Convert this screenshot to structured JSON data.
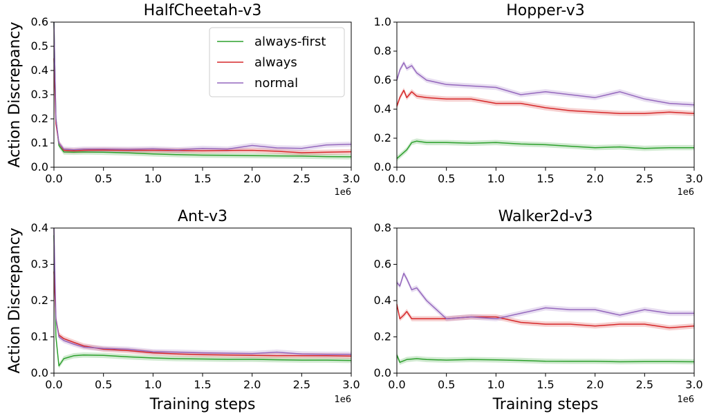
{
  "figure": {
    "ylabel": "Action Discrepancy",
    "xlabel": "Training steps",
    "colors": {
      "always-first": "#2ca02c",
      "always": "#d62728",
      "normal": "#9467bd"
    }
  },
  "chart_data": [
    {
      "type": "line",
      "title": "HalfCheetah-v3",
      "xlim": [
        0,
        3.0
      ],
      "ylim": [
        0,
        0.6
      ],
      "xticks": [
        "0.0",
        "0.5",
        "1.0",
        "1.5",
        "2.0",
        "2.5",
        "3.0"
      ],
      "yticks": [
        "0.0",
        "0.1",
        "0.2",
        "0.3",
        "0.4",
        "0.5",
        "0.6"
      ],
      "x_offset_label": "1e6",
      "ylabel": "Action Discrepancy",
      "xlabel": "",
      "legend": {
        "placement": "top-right",
        "entries": [
          "always-first",
          "always",
          "normal"
        ]
      },
      "series": [
        {
          "name": "always-first",
          "x": [
            0.0,
            0.02,
            0.05,
            0.1,
            0.2,
            0.3,
            0.5,
            0.75,
            1.0,
            1.25,
            1.5,
            1.75,
            2.0,
            2.25,
            2.5,
            2.75,
            3.0
          ],
          "y": [
            0.6,
            0.2,
            0.09,
            0.063,
            0.062,
            0.063,
            0.062,
            0.059,
            0.055,
            0.052,
            0.05,
            0.049,
            0.048,
            0.047,
            0.046,
            0.044,
            0.043
          ]
        },
        {
          "name": "always",
          "x": [
            0.0,
            0.02,
            0.05,
            0.1,
            0.2,
            0.3,
            0.5,
            0.75,
            1.0,
            1.25,
            1.5,
            1.75,
            2.0,
            2.25,
            2.5,
            2.75,
            3.0
          ],
          "y": [
            0.45,
            0.18,
            0.1,
            0.07,
            0.068,
            0.07,
            0.071,
            0.07,
            0.07,
            0.069,
            0.068,
            0.069,
            0.07,
            0.066,
            0.06,
            0.062,
            0.064
          ]
        },
        {
          "name": "normal",
          "x": [
            0.0,
            0.02,
            0.05,
            0.1,
            0.2,
            0.3,
            0.5,
            0.75,
            1.0,
            1.25,
            1.5,
            1.75,
            2.0,
            2.25,
            2.5,
            2.75,
            3.0
          ],
          "y": [
            0.6,
            0.2,
            0.1,
            0.075,
            0.072,
            0.075,
            0.075,
            0.074,
            0.076,
            0.072,
            0.078,
            0.075,
            0.09,
            0.08,
            0.078,
            0.092,
            0.095
          ]
        }
      ]
    },
    {
      "type": "line",
      "title": "Hopper-v3",
      "xlim": [
        0,
        3.0
      ],
      "ylim": [
        0,
        1.0
      ],
      "xticks": [
        "0.0",
        "0.5",
        "1.0",
        "1.5",
        "2.0",
        "2.5",
        "3.0"
      ],
      "yticks": [
        "0.0",
        "0.2",
        "0.4",
        "0.6",
        "0.8",
        "1.0"
      ],
      "x_offset_label": "1e6",
      "ylabel": "",
      "xlabel": "",
      "series": [
        {
          "name": "always-first",
          "x": [
            0.0,
            0.05,
            0.1,
            0.15,
            0.2,
            0.3,
            0.5,
            0.75,
            1.0,
            1.25,
            1.5,
            1.75,
            2.0,
            2.25,
            2.5,
            2.75,
            3.0
          ],
          "y": [
            0.06,
            0.09,
            0.12,
            0.17,
            0.18,
            0.17,
            0.17,
            0.165,
            0.17,
            0.16,
            0.155,
            0.145,
            0.135,
            0.14,
            0.13,
            0.135,
            0.135
          ]
        },
        {
          "name": "always",
          "x": [
            0.0,
            0.03,
            0.07,
            0.1,
            0.15,
            0.2,
            0.3,
            0.5,
            0.75,
            1.0,
            1.25,
            1.5,
            1.75,
            2.0,
            2.25,
            2.5,
            2.75,
            3.0
          ],
          "y": [
            0.42,
            0.48,
            0.53,
            0.48,
            0.52,
            0.49,
            0.48,
            0.47,
            0.47,
            0.44,
            0.44,
            0.41,
            0.39,
            0.38,
            0.37,
            0.37,
            0.38,
            0.37
          ]
        },
        {
          "name": "normal",
          "x": [
            0.0,
            0.03,
            0.07,
            0.1,
            0.15,
            0.2,
            0.3,
            0.5,
            0.75,
            1.0,
            1.25,
            1.5,
            1.75,
            2.0,
            2.25,
            2.5,
            2.75,
            3.0
          ],
          "y": [
            0.6,
            0.67,
            0.72,
            0.68,
            0.7,
            0.65,
            0.6,
            0.57,
            0.56,
            0.55,
            0.5,
            0.52,
            0.5,
            0.48,
            0.52,
            0.47,
            0.44,
            0.43
          ]
        }
      ]
    },
    {
      "type": "line",
      "title": "Ant-v3",
      "xlim": [
        0,
        3.0
      ],
      "ylim": [
        0,
        0.4
      ],
      "xticks": [
        "0.0",
        "0.5",
        "1.0",
        "1.5",
        "2.0",
        "2.5",
        "3.0"
      ],
      "yticks": [
        "0.0",
        "0.1",
        "0.2",
        "0.3",
        "0.4"
      ],
      "x_offset_label": "1e6",
      "ylabel": "Action Discrepancy",
      "xlabel": "Training steps",
      "series": [
        {
          "name": "always-first",
          "x": [
            0.0,
            0.02,
            0.05,
            0.1,
            0.2,
            0.3,
            0.5,
            0.75,
            1.0,
            1.25,
            1.5,
            1.75,
            2.0,
            2.25,
            2.5,
            2.75,
            3.0
          ],
          "y": [
            0.38,
            0.1,
            0.02,
            0.04,
            0.048,
            0.05,
            0.049,
            0.045,
            0.042,
            0.04,
            0.039,
            0.038,
            0.038,
            0.037,
            0.036,
            0.036,
            0.035
          ]
        },
        {
          "name": "always",
          "x": [
            0.0,
            0.02,
            0.05,
            0.1,
            0.2,
            0.3,
            0.5,
            0.75,
            1.0,
            1.25,
            1.5,
            1.75,
            2.0,
            2.25,
            2.5,
            2.75,
            3.0
          ],
          "y": [
            0.28,
            0.15,
            0.105,
            0.095,
            0.085,
            0.075,
            0.066,
            0.062,
            0.056,
            0.053,
            0.051,
            0.05,
            0.049,
            0.048,
            0.048,
            0.048,
            0.047
          ]
        },
        {
          "name": "normal",
          "x": [
            0.0,
            0.02,
            0.05,
            0.1,
            0.2,
            0.3,
            0.5,
            0.75,
            1.0,
            1.25,
            1.5,
            1.75,
            2.0,
            2.25,
            2.5,
            2.75,
            3.0
          ],
          "y": [
            0.4,
            0.15,
            0.1,
            0.09,
            0.08,
            0.072,
            0.068,
            0.066,
            0.059,
            0.058,
            0.056,
            0.055,
            0.054,
            0.058,
            0.053,
            0.052,
            0.052
          ]
        }
      ]
    },
    {
      "type": "line",
      "title": "Walker2d-v3",
      "xlim": [
        0,
        3.0
      ],
      "ylim": [
        0,
        0.8
      ],
      "xticks": [
        "0.0",
        "0.5",
        "1.0",
        "1.5",
        "2.0",
        "2.5",
        "3.0"
      ],
      "yticks": [
        "0.0",
        "0.2",
        "0.4",
        "0.6",
        "0.8"
      ],
      "x_offset_label": "1e6",
      "ylabel": "",
      "xlabel": "Training steps",
      "series": [
        {
          "name": "always-first",
          "x": [
            0.0,
            0.03,
            0.1,
            0.2,
            0.3,
            0.5,
            0.75,
            1.0,
            1.25,
            1.5,
            1.75,
            2.0,
            2.25,
            2.5,
            2.75,
            3.0
          ],
          "y": [
            0.1,
            0.06,
            0.075,
            0.08,
            0.075,
            0.072,
            0.075,
            0.073,
            0.07,
            0.066,
            0.065,
            0.065,
            0.063,
            0.064,
            0.064,
            0.063
          ]
        },
        {
          "name": "always",
          "x": [
            0.0,
            0.03,
            0.07,
            0.1,
            0.15,
            0.2,
            0.3,
            0.5,
            0.75,
            1.0,
            1.25,
            1.5,
            1.75,
            2.0,
            2.25,
            2.5,
            2.75,
            3.0
          ],
          "y": [
            0.38,
            0.3,
            0.32,
            0.34,
            0.3,
            0.3,
            0.3,
            0.3,
            0.31,
            0.31,
            0.28,
            0.27,
            0.27,
            0.26,
            0.27,
            0.27,
            0.25,
            0.26
          ]
        },
        {
          "name": "normal",
          "x": [
            0.0,
            0.03,
            0.07,
            0.1,
            0.15,
            0.2,
            0.3,
            0.4,
            0.5,
            0.75,
            1.0,
            1.25,
            1.5,
            1.75,
            2.0,
            2.25,
            2.5,
            2.75,
            3.0
          ],
          "y": [
            0.5,
            0.48,
            0.55,
            0.52,
            0.46,
            0.47,
            0.4,
            0.35,
            0.3,
            0.31,
            0.3,
            0.33,
            0.36,
            0.35,
            0.35,
            0.32,
            0.35,
            0.33,
            0.33
          ]
        }
      ]
    }
  ]
}
